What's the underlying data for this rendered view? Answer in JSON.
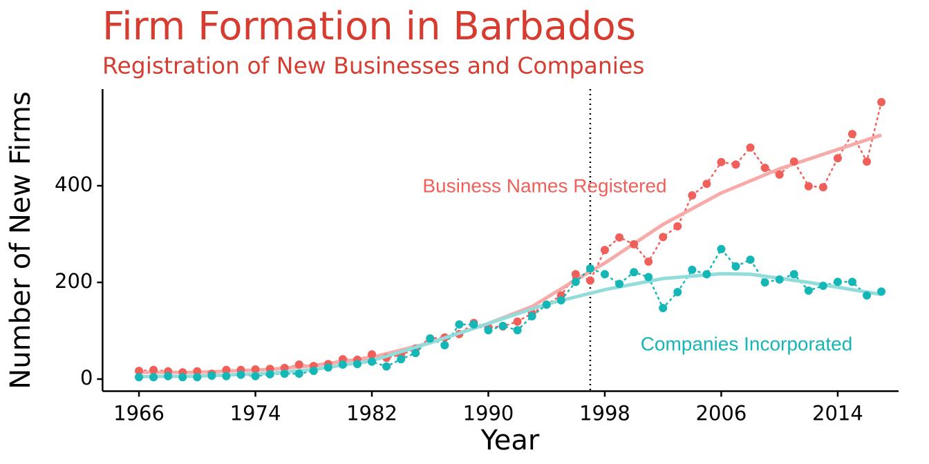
{
  "chart_data": {
    "type": "line",
    "title": "Firm Formation in Barbados",
    "subtitle": "Registration of New Businesses and Companies",
    "x_label": "Year",
    "y_label": "Number of New Firms",
    "x": [
      1966,
      1967,
      1968,
      1969,
      1970,
      1971,
      1972,
      1973,
      1974,
      1975,
      1976,
      1977,
      1978,
      1979,
      1980,
      1981,
      1982,
      1983,
      1984,
      1985,
      1986,
      1987,
      1988,
      1989,
      1990,
      1991,
      1992,
      1993,
      1994,
      1995,
      1996,
      1997,
      1998,
      1999,
      2000,
      2001,
      2002,
      2003,
      2004,
      2005,
      2006,
      2007,
      2008,
      2009,
      2010,
      2011,
      2012,
      2013,
      2014,
      2015,
      2016,
      2017
    ],
    "series": [
      {
        "name": "Business Names Registered",
        "color": "#f0605a",
        "trend_color": "#f7aaa8",
        "values": [
          17,
          19,
          16,
          14,
          16,
          11,
          19,
          19,
          20,
          21,
          23,
          30,
          27,
          31,
          41,
          40,
          51,
          44,
          50,
          63,
          84,
          86,
          93,
          116,
          107,
          109,
          119,
          136,
          154,
          173,
          217,
          204,
          267,
          293,
          279,
          243,
          294,
          316,
          380,
          404,
          449,
          444,
          479,
          437,
          423,
          450,
          399,
          397,
          457,
          507,
          450,
          573
        ],
        "trend_x": [
          1966,
          1970,
          1975,
          1978,
          1982,
          1986,
          1990,
          1993,
          1996,
          1998,
          2002,
          2006,
          2010,
          2014,
          2017
        ],
        "trend": [
          14,
          14,
          20,
          28,
          45,
          75,
          115,
          150,
          205,
          240,
          320,
          385,
          435,
          475,
          505
        ]
      },
      {
        "name": "Companies Incorporated",
        "color": "#14b6b6",
        "trend_color": "#93dcdc",
        "values": [
          4,
          4,
          6,
          4,
          4,
          7,
          6,
          9,
          6,
          10,
          11,
          11,
          17,
          24,
          30,
          31,
          36,
          26,
          41,
          54,
          84,
          70,
          113,
          113,
          101,
          110,
          101,
          130,
          154,
          163,
          201,
          229,
          217,
          197,
          221,
          211,
          147,
          180,
          226,
          217,
          269,
          233,
          247,
          200,
          206,
          217,
          183,
          193,
          201,
          201,
          173,
          181
        ],
        "trend_x": [
          1966,
          1970,
          1975,
          1978,
          1982,
          1986,
          1990,
          1994,
          1998,
          2002,
          2006,
          2008,
          2012,
          2017
        ],
        "trend": [
          5,
          6,
          12,
          20,
          38,
          75,
          115,
          155,
          185,
          208,
          218,
          217,
          200,
          175
        ]
      }
    ],
    "vline": 1997,
    "xlim": [
      1963.5,
      2018.5
    ],
    "xticks": [
      1966,
      1974,
      1982,
      1990,
      1998,
      2006,
      2014
    ],
    "ylim": [
      -25,
      600
    ],
    "yticks": [
      0,
      200,
      400
    ]
  }
}
